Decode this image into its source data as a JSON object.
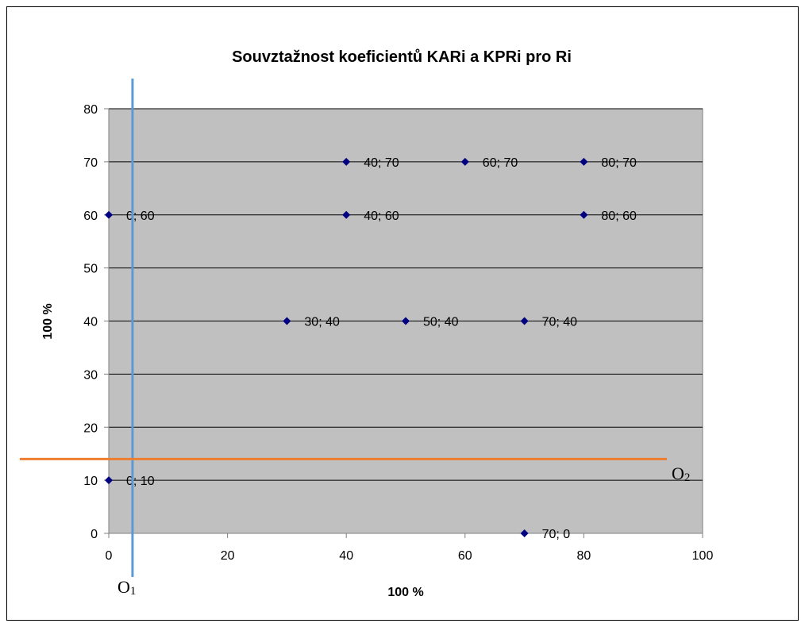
{
  "chart_data": {
    "type": "scatter",
    "title": "Souvztažnost koeficientů KARi a KPRi pro Ri",
    "xlabel": "100 %",
    "ylabel": "100 %",
    "xlim": [
      0,
      100
    ],
    "ylim": [
      0,
      80
    ],
    "xticks": [
      0,
      20,
      40,
      60,
      80,
      100
    ],
    "yticks": [
      0,
      10,
      20,
      30,
      40,
      50,
      60,
      70,
      80
    ],
    "grid": "horizontal",
    "plot_background": "#c0c0c0",
    "marker_color": "#000080",
    "series": [
      {
        "points": [
          {
            "x": 0,
            "y": 60,
            "label": "0; 60"
          },
          {
            "x": 0,
            "y": 10,
            "label": "0; 10"
          },
          {
            "x": 30,
            "y": 40,
            "label": "30; 40"
          },
          {
            "x": 40,
            "y": 70,
            "label": "40; 70"
          },
          {
            "x": 40,
            "y": 60,
            "label": "40; 60"
          },
          {
            "x": 50,
            "y": 40,
            "label": "50; 40"
          },
          {
            "x": 60,
            "y": 70,
            "label": "60; 70"
          },
          {
            "x": 70,
            "y": 40,
            "label": "70; 40"
          },
          {
            "x": 70,
            "y": 0,
            "label": "70; 0"
          },
          {
            "x": 80,
            "y": 70,
            "label": "80; 70"
          },
          {
            "x": 80,
            "y": 60,
            "label": "80; 60"
          }
        ]
      }
    ],
    "reference_lines": [
      {
        "orientation": "vertical",
        "x": 4,
        "color": "#5b9bd5",
        "label_main": "O",
        "label_sub": "1"
      },
      {
        "orientation": "horizontal",
        "y": 14,
        "color": "#ed7d31",
        "label_main": "O",
        "label_sub": "2"
      }
    ]
  }
}
